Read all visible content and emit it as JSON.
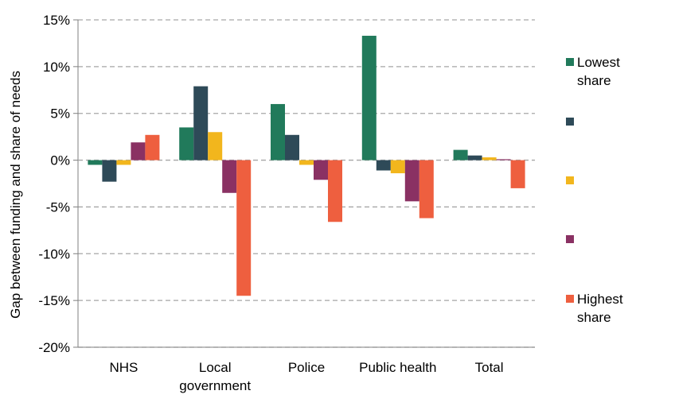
{
  "chart_data": {
    "type": "bar",
    "ylabel": "Gap between funding and share of needs",
    "xlabel": "",
    "ylim": [
      -20,
      15
    ],
    "y_ticks": [
      15,
      10,
      5,
      0,
      -5,
      -10,
      -15,
      -20
    ],
    "y_tick_labels": [
      "15%",
      "10%",
      "5%",
      "0%",
      "-5%",
      "-10%",
      "-15%",
      "-20%"
    ],
    "grid": true,
    "legend_position": "right",
    "categories": [
      "NHS",
      "Local government",
      "Police",
      "Public health",
      "Total"
    ],
    "category_label_lines": [
      [
        "NHS"
      ],
      [
        "Local",
        "government"
      ],
      [
        "Police"
      ],
      [
        "Public health"
      ],
      [
        "Total"
      ]
    ],
    "series": [
      {
        "name": "Lowest share",
        "color": "#217a5b",
        "values": [
          -0.5,
          3.5,
          6.0,
          13.3,
          1.1
        ]
      },
      {
        "name": "",
        "color": "#2e4a58",
        "values": [
          -2.3,
          7.9,
          2.7,
          -1.1,
          0.5
        ]
      },
      {
        "name": "",
        "color": "#f2b61d",
        "values": [
          -0.5,
          3.0,
          -0.5,
          -1.4,
          0.3
        ]
      },
      {
        "name": "",
        "color": "#8a3163",
        "values": [
          1.9,
          -3.5,
          -2.1,
          -4.4,
          0.1
        ]
      },
      {
        "name": "Highest share",
        "color": "#ee5f3f",
        "values": [
          2.7,
          -14.5,
          -6.6,
          -6.2,
          -3.0
        ]
      }
    ],
    "legend_label_lines": [
      [
        "Lowest",
        "share"
      ],
      [],
      [],
      [],
      [
        "Highest",
        "share"
      ]
    ]
  }
}
